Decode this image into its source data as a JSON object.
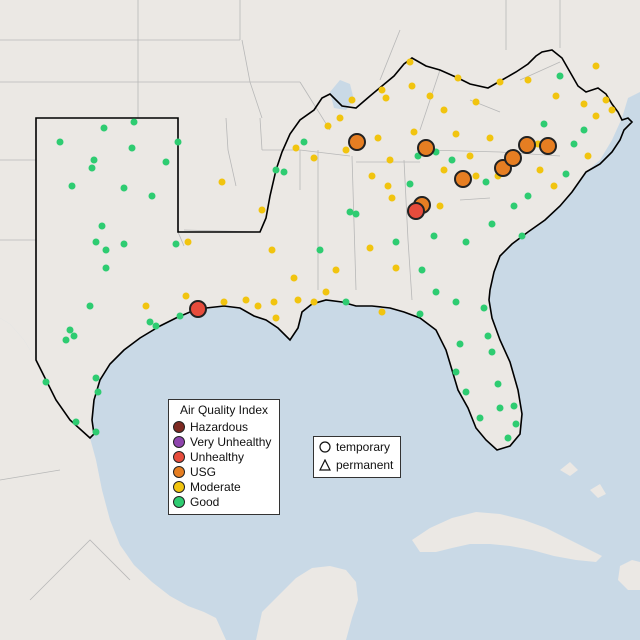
{
  "legend": {
    "title": "Air Quality Index",
    "items": [
      {
        "label": "Hazardous",
        "color": "#7e2a22",
        "icon": "circle-hazardous-icon"
      },
      {
        "label": "Very Unhealthy",
        "color": "#8e44ad",
        "icon": "circle-very-unhealthy-icon"
      },
      {
        "label": "Unhealthy",
        "color": "#e74c3c",
        "icon": "circle-unhealthy-icon"
      },
      {
        "label": "USG",
        "color": "#e67e22",
        "icon": "circle-usg-icon"
      },
      {
        "label": "Moderate",
        "color": "#f1c40f",
        "icon": "circle-moderate-icon"
      },
      {
        "label": "Good",
        "color": "#2ecc71",
        "icon": "circle-good-icon"
      }
    ]
  },
  "type_legend": {
    "items": [
      {
        "label": "temporary",
        "icon": "circle-outline-icon"
      },
      {
        "label": "permanent",
        "icon": "triangle-outline-icon"
      }
    ]
  },
  "colors": {
    "water": "#c9d9e6",
    "land": "#ebe8e4",
    "state_border": "#b8b8b8",
    "region_border": "#000000"
  }
}
